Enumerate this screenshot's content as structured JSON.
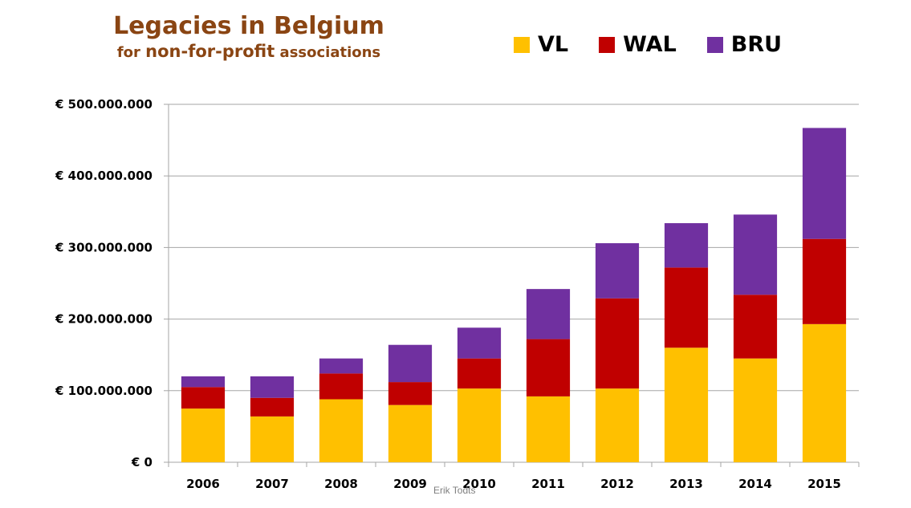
{
  "header": {
    "title": "Legacies in Belgium",
    "subtitle_pre": "for ",
    "subtitle_mid": "non-for-profit",
    "subtitle_post": " associations"
  },
  "footer": {
    "credit": "Erik Todts"
  },
  "chart_data": {
    "type": "bar",
    "stacked": true,
    "title": "Legacies in Belgium",
    "subtitle": "for non-for-profit associations",
    "xlabel": "",
    "ylabel": "",
    "categories": [
      "2006",
      "2007",
      "2008",
      "2009",
      "2010",
      "2011",
      "2012",
      "2013",
      "2014",
      "2015"
    ],
    "series": [
      {
        "name": "VL",
        "color": "#FFC000",
        "values": [
          75000000,
          64000000,
          88000000,
          80000000,
          103000000,
          92000000,
          103000000,
          160000000,
          145000000,
          193000000
        ]
      },
      {
        "name": "WAL",
        "color": "#C00000",
        "values": [
          30000000,
          26000000,
          36000000,
          32000000,
          42000000,
          80000000,
          126000000,
          112000000,
          89000000,
          119000000
        ]
      },
      {
        "name": "BRU",
        "color": "#7030A0",
        "values": [
          15000000,
          30000000,
          21000000,
          52000000,
          43000000,
          70000000,
          77000000,
          62000000,
          112000000,
          155000000
        ]
      }
    ],
    "ylim": [
      0,
      500000000
    ],
    "yticks": [
      0,
      100000000,
      200000000,
      300000000,
      400000000,
      500000000
    ],
    "ytick_labels": [
      "€ 0",
      "€ 100.000.000",
      "€ 200.000.000",
      "€ 300.000.000",
      "€ 400.000.000",
      "€ 500.000.000"
    ],
    "grid": true,
    "legend_position": "top-right"
  }
}
